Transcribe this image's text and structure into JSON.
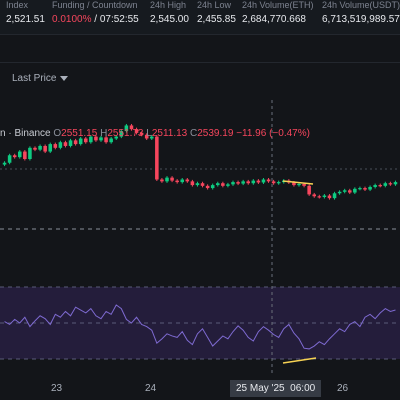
{
  "stats": [
    {
      "label": "Index",
      "value": "2,521.51",
      "color": "normal"
    },
    {
      "label": "Funding / Countdown",
      "value_rate": "0.0100%",
      "value_time": " / 07:52:55"
    },
    {
      "label": "24h High",
      "value": "2,545.00"
    },
    {
      "label": "24h Low",
      "value": "2,455.85"
    },
    {
      "label": "24h Volume(ETH)",
      "value": "2,684,770.668"
    },
    {
      "label": "24h Volume(USDT)",
      "value": "6,713,519,989.57"
    }
  ],
  "toolbar": {
    "last_price_label": "Last Price"
  },
  "ohlc": {
    "pair": "n · Binance",
    "o_label": "O",
    "o": "2551.15",
    "h_label": "H",
    "h": "2551.73",
    "l_label": "L",
    "l": "2511.13",
    "c_label": "C",
    "c": "2539.19",
    "change": "−11.96 (−0.47%)"
  },
  "xaxis": {
    "labels": [
      "23",
      "24",
      "26"
    ],
    "highlight_date": "25 May '25",
    "highlight_time": "06:00"
  },
  "colors": {
    "up": "#0ecb81",
    "down": "#f6465d",
    "rsi_line": "#7e6ad1",
    "rsi_band": "#241d3b",
    "annotation": "#f7d254",
    "background": "#131519"
  },
  "chart_data": {
    "type": "candlestick",
    "series": [
      {
        "name": "price",
        "values": [
          2440,
          2460,
          2455,
          2470,
          2450,
          2480,
          2475,
          2485,
          2470,
          2490,
          2480,
          2495,
          2485,
          2500,
          2490,
          2505,
          2495,
          2510,
          2500,
          2508,
          2495,
          2505,
          2510,
          2525,
          2540,
          2530,
          2520,
          2515,
          2505,
          2510,
          2395,
          2390,
          2400,
          2392,
          2388,
          2395,
          2390,
          2380,
          2385,
          2378,
          2372,
          2380,
          2385,
          2378,
          2382,
          2388,
          2384,
          2390,
          2385,
          2392,
          2387,
          2395,
          2390,
          2385,
          2388,
          2392,
          2387,
          2380,
          2383,
          2378,
          2355,
          2350,
          2348,
          2352,
          2345,
          2358,
          2362,
          2366,
          2360,
          2370,
          2372,
          2368,
          2375,
          2380,
          2378,
          2385,
          2382,
          2388
        ]
      }
    ],
    "indicator": {
      "name": "RSI",
      "values": [
        52,
        48,
        55,
        50,
        58,
        45,
        53,
        60,
        56,
        48,
        62,
        58,
        66,
        60,
        72,
        68,
        64,
        70,
        60,
        56,
        66,
        62,
        75,
        70,
        55,
        50,
        58,
        48,
        45,
        40,
        22,
        28,
        35,
        32,
        30,
        38,
        26,
        20,
        35,
        42,
        30,
        18,
        25,
        32,
        28,
        38,
        46,
        40,
        30,
        25,
        38,
        45,
        40,
        34,
        30,
        42,
        48,
        36,
        28,
        15,
        14,
        18,
        24,
        20,
        28,
        35,
        42,
        38,
        48,
        52,
        45,
        58,
        62,
        56,
        64,
        70,
        66,
        68
      ]
    }
  }
}
